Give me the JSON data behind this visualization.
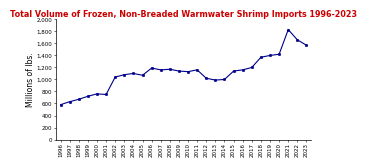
{
  "title": "Total Volume of Frozen, Non-Breaded Warmwater Shrimp Imports 1996-2023",
  "title_color": "#cc0000",
  "ylabel": "Millions of lbs.",
  "years": [
    1996,
    1997,
    1998,
    1999,
    2000,
    2001,
    2002,
    2003,
    2004,
    2005,
    2006,
    2007,
    2008,
    2009,
    2010,
    2011,
    2012,
    2013,
    2014,
    2015,
    2016,
    2017,
    2018,
    2019,
    2020,
    2021,
    2022,
    2023
  ],
  "values": [
    580,
    630,
    670,
    720,
    760,
    750,
    1040,
    1080,
    1100,
    1070,
    1190,
    1160,
    1170,
    1140,
    1130,
    1160,
    1020,
    990,
    1000,
    1140,
    1160,
    1200,
    1370,
    1400,
    1420,
    1830,
    1660,
    1570
  ],
  "line_color": "#00008B",
  "marker_color": "#00008B",
  "background_color": "#ffffff",
  "ylim": [
    0,
    2000
  ],
  "yticks": [
    0,
    200,
    400,
    600,
    800,
    1000,
    1200,
    1400,
    1600,
    1800,
    2000
  ],
  "title_fontsize": 5.8,
  "ylabel_fontsize": 5.5,
  "tick_fontsize": 4.0
}
